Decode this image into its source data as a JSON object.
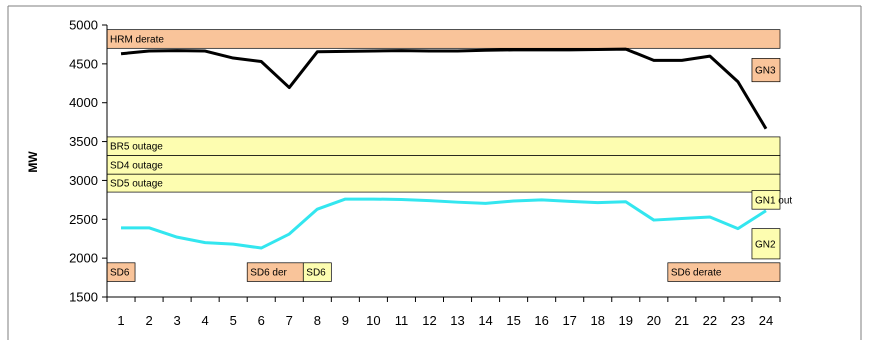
{
  "header": {
    "title_fragment": ""
  },
  "colors": {
    "orange_band": "#f9c49a",
    "yellow_band": "#fdfdb0",
    "band_border": "#000000",
    "series_black": "#000000",
    "series_cyan": "#33e6ef",
    "frame": "#7f7f7f"
  },
  "chart_data": {
    "type": "line",
    "ylabel": "MW",
    "xlabel": "",
    "ylim": [
      1500,
      5000
    ],
    "yticks": [
      1500,
      2000,
      2500,
      3000,
      3500,
      4000,
      4500,
      5000
    ],
    "x": [
      1,
      2,
      3,
      4,
      5,
      6,
      7,
      8,
      9,
      10,
      11,
      12,
      13,
      14,
      15,
      16,
      17,
      18,
      19,
      20,
      21,
      22,
      23,
      24
    ],
    "grid": false,
    "series": [
      {
        "color": "#000000",
        "values": [
          4630,
          4665,
          4670,
          4665,
          4575,
          4530,
          4195,
          4655,
          4660,
          4665,
          4670,
          4665,
          4665,
          4675,
          4680,
          4680,
          4680,
          4685,
          4690,
          4545,
          4545,
          4600,
          4270,
          3665
        ]
      },
      {
        "color": "#33e6ef",
        "values": [
          2390,
          2390,
          2270,
          2200,
          2180,
          2130,
          2310,
          2630,
          2760,
          2760,
          2755,
          2740,
          2720,
          2705,
          2735,
          2750,
          2730,
          2715,
          2725,
          2490,
          2510,
          2530,
          2380,
          2610
        ]
      }
    ],
    "bands": [
      {
        "label": "HRM derate",
        "color": "orange",
        "x0": 0.5,
        "x1": 24.5,
        "y0": 4700,
        "y1": 4940
      },
      {
        "label": "BR5 outage",
        "color": "yellow",
        "x0": 0.5,
        "x1": 24.5,
        "y0": 3320,
        "y1": 3560
      },
      {
        "label": "SD4 outage",
        "color": "yellow",
        "x0": 0.5,
        "x1": 24.5,
        "y0": 3080,
        "y1": 3320
      },
      {
        "label": "SD5 outage",
        "color": "yellow",
        "x0": 0.5,
        "x1": 24.5,
        "y0": 2850,
        "y1": 3080
      },
      {
        "label": "SD6",
        "color": "orange",
        "x0": 0.5,
        "x1": 1.5,
        "y0": 1700,
        "y1": 1940
      },
      {
        "label": "SD6 der",
        "color": "orange",
        "x0": 5.5,
        "x1": 7.5,
        "y0": 1700,
        "y1": 1940
      },
      {
        "label": "SD6",
        "color": "yellow",
        "x0": 7.5,
        "x1": 8.5,
        "y0": 1700,
        "y1": 1940
      },
      {
        "label": "SD6 derate",
        "color": "orange",
        "x0": 20.5,
        "x1": 24.5,
        "y0": 1700,
        "y1": 1940
      },
      {
        "label": "GN3",
        "color": "orange",
        "x0": 23.5,
        "x1": 24.5,
        "y0": 4270,
        "y1": 4570
      },
      {
        "label": "GN1 out",
        "color": "yellow",
        "x0": 23.5,
        "x1": 24.5,
        "y0": 2630,
        "y1": 2870
      },
      {
        "label": "GN2",
        "color": "yellow",
        "x0": 23.5,
        "x1": 24.5,
        "y0": 1990,
        "y1": 2380
      }
    ]
  }
}
